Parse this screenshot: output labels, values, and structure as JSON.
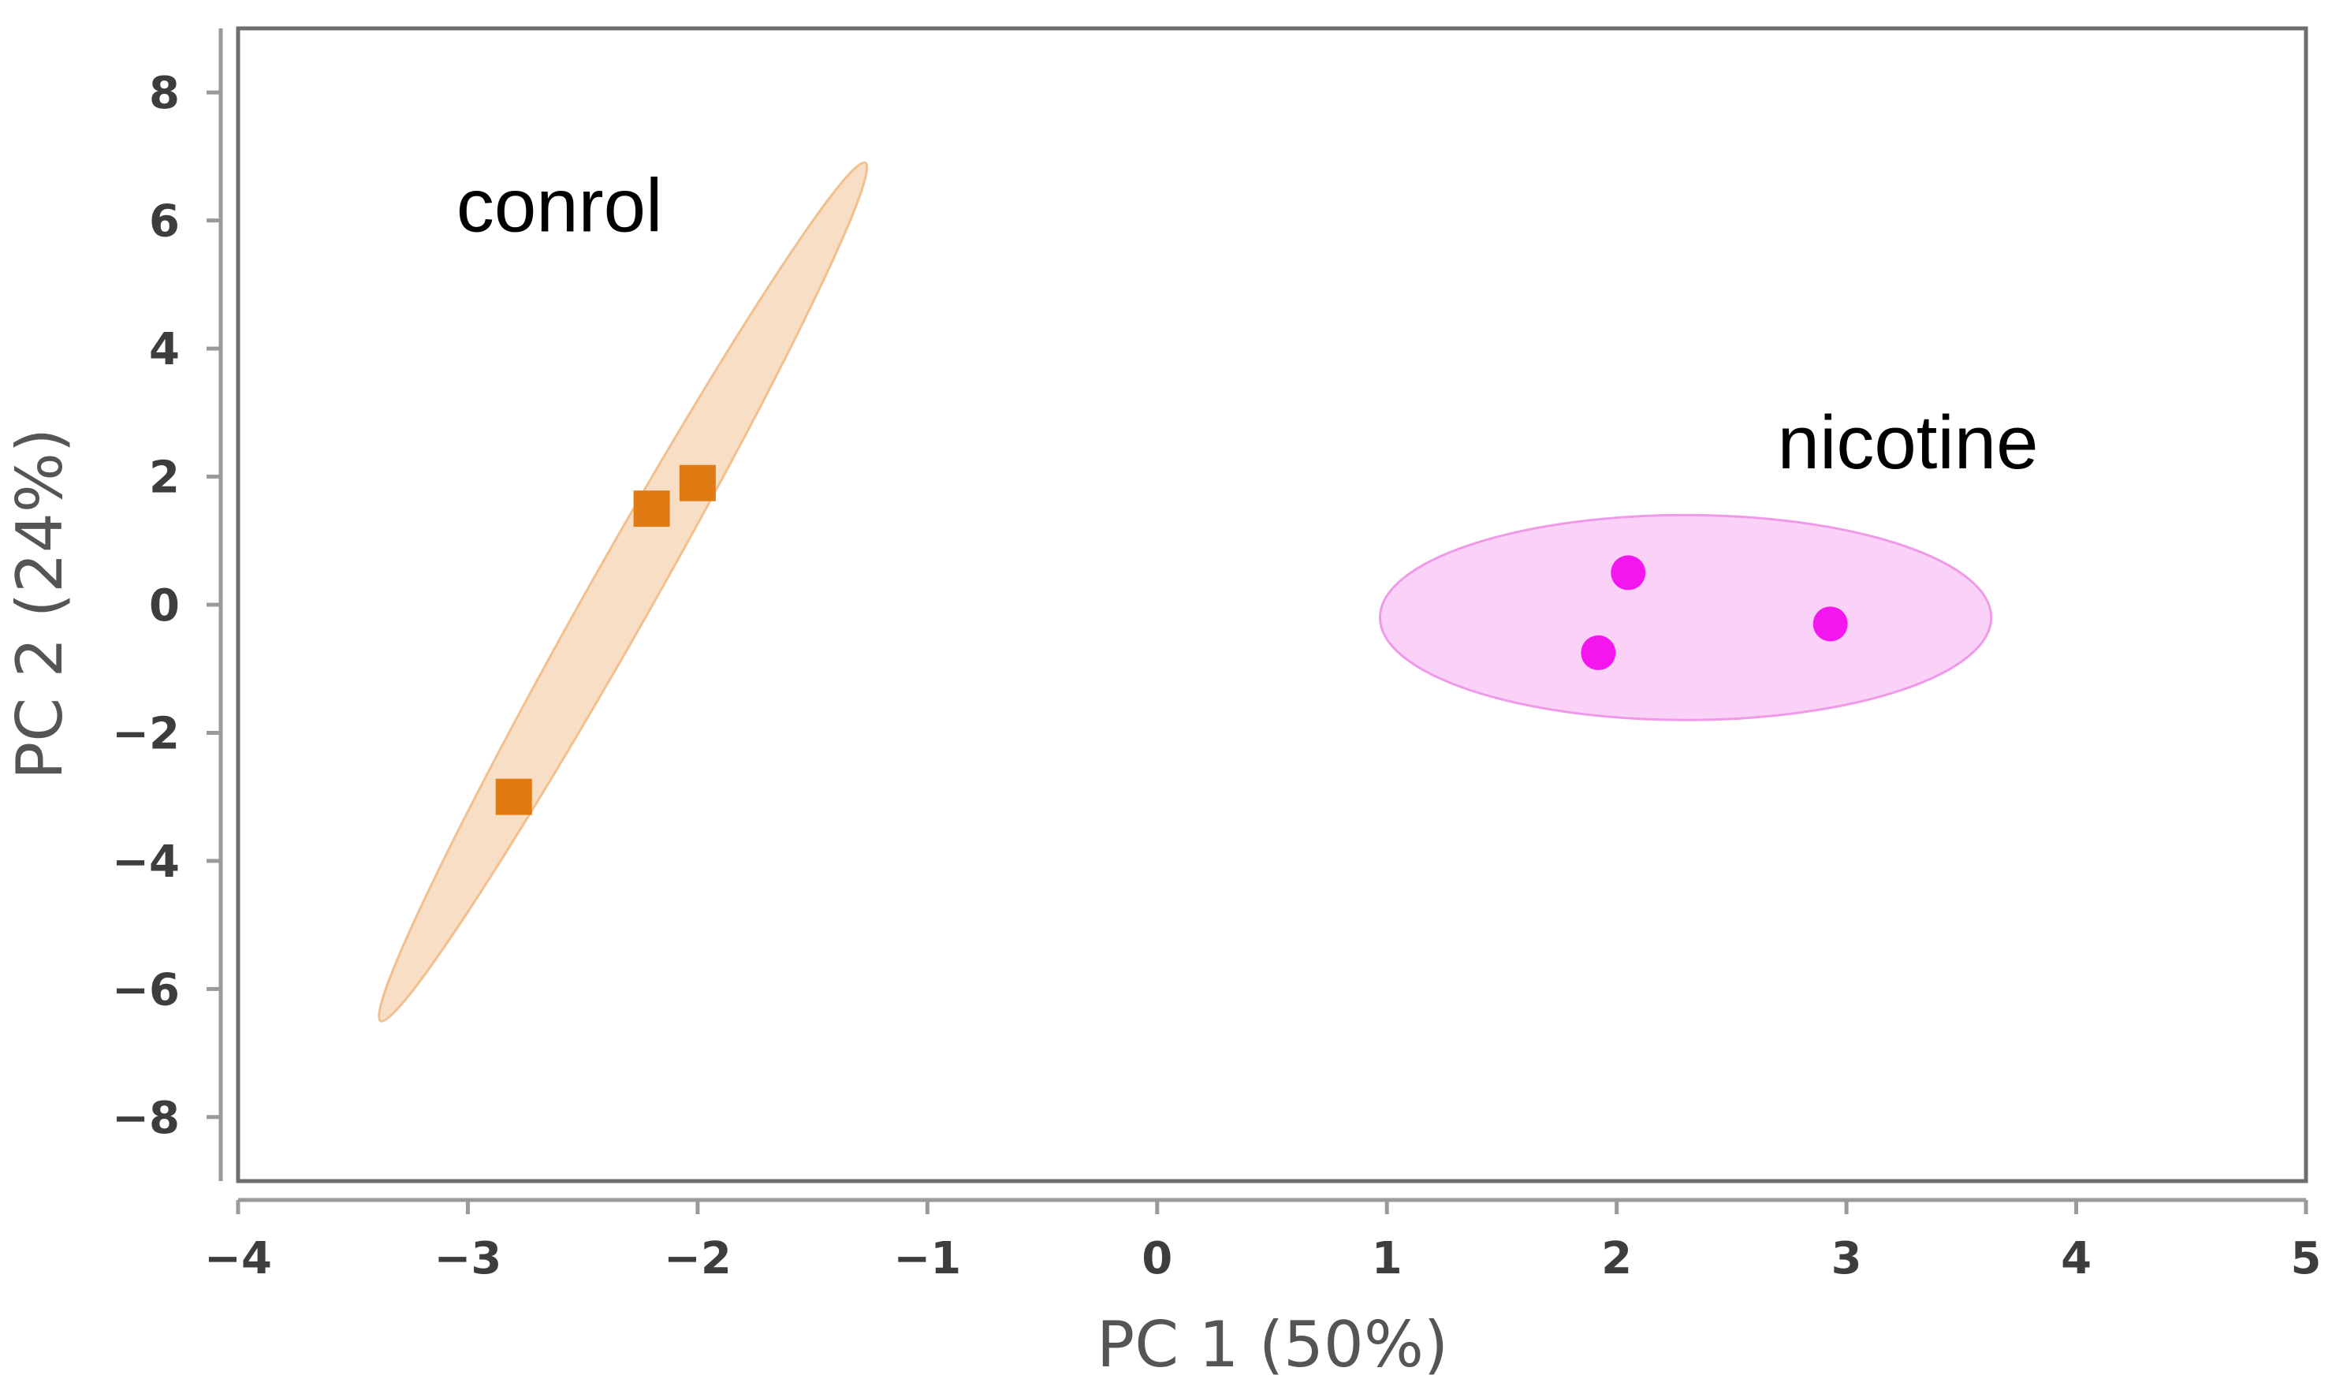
{
  "chart_data": {
    "type": "scatter",
    "title": "",
    "xlabel": "PC 1 (50%)",
    "ylabel": "PC 2 (24%)",
    "xlim": [
      -4,
      5
    ],
    "ylim": [
      -9,
      9
    ],
    "xticks": [
      -4,
      -3,
      -2,
      -1,
      0,
      1,
      2,
      3,
      4,
      5
    ],
    "yticks": [
      -8,
      -6,
      -4,
      -2,
      0,
      2,
      4,
      6,
      8
    ],
    "xtick_labels": [
      "−4",
      "−3",
      "−2",
      "−1",
      "0",
      "1",
      "2",
      "3",
      "4",
      "5"
    ],
    "ytick_labels": [
      "−8",
      "−6",
      "−4",
      "−2",
      "0",
      "2",
      "4",
      "6",
      "8"
    ],
    "grid": false,
    "series": [
      {
        "name": "conrol",
        "marker": "square",
        "color": "#e07b13",
        "points": [
          {
            "x": -2.8,
            "y": -3.0
          },
          {
            "x": -2.2,
            "y": 1.5
          },
          {
            "x": -2.0,
            "y": 1.9
          }
        ],
        "ellipse": {
          "center": [
            -2.33,
            0.2
          ],
          "endpoints": [
            [
              -3.38,
              -6.5
            ],
            [
              -1.27,
              6.9
            ]
          ],
          "minor_halfwidth": 0.14,
          "fill": "#f8dec4",
          "stroke": "#f2bf8f"
        }
      },
      {
        "name": "nicotine",
        "marker": "circle",
        "color": "#f316ee",
        "points": [
          {
            "x": 2.05,
            "y": 0.5
          },
          {
            "x": 1.92,
            "y": -0.75
          },
          {
            "x": 2.93,
            "y": -0.3
          }
        ],
        "ellipse": {
          "center": [
            2.3,
            -0.2
          ],
          "endpoints": [
            [
              0.97,
              -0.2
            ],
            [
              3.63,
              -0.2
            ]
          ],
          "minor_halfwidth_y": 1.6,
          "fill": "#fbd2f7",
          "stroke": "#ef9ae9"
        }
      }
    ],
    "annotations": [
      {
        "text": "conrol",
        "x": -3.05,
        "y": 6.2
      },
      {
        "text": "nicotine",
        "x": 2.7,
        "y": 2.5
      }
    ]
  }
}
